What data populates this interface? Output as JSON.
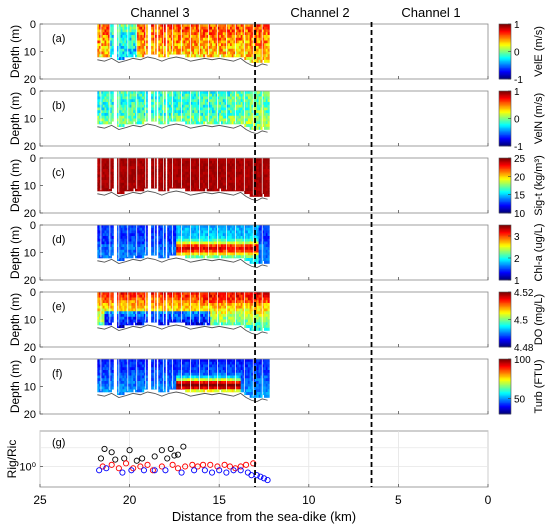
{
  "chart_data": [
    {
      "type": "heatmap",
      "panel_label": "(a)",
      "ylabel": "Depth (m)",
      "colorbar_label": "VelE (m/s)",
      "clim": [
        -1,
        1
      ],
      "colorbar_ticks": [
        "-1",
        "0",
        "1"
      ],
      "colormap": "jet",
      "approx_pattern": "mostly 0.2-1 (orange-red), yellow/green near 20-21 km"
    },
    {
      "type": "heatmap",
      "panel_label": "(b)",
      "ylabel": "Depth (m)",
      "colorbar_label": "VelN (m/s)",
      "clim": [
        -1,
        1
      ],
      "colorbar_ticks": [
        "-1",
        "0",
        "1"
      ],
      "colormap": "jet",
      "approx_pattern": "mostly -0.3 to 0.2 (cyan-green)"
    },
    {
      "type": "heatmap",
      "panel_label": "(c)",
      "ylabel": "Depth (m)",
      "colorbar_label": "Sig-t (kg/m³)",
      "clim": [
        10,
        25
      ],
      "colorbar_ticks": [
        "10",
        "15",
        "20",
        "25"
      ],
      "colormap": "jet",
      "approx_pattern": "uniformly ~25 (dark red)"
    },
    {
      "type": "heatmap",
      "panel_label": "(d)",
      "ylabel": "Depth (m)",
      "colorbar_label": "Chl-a (ug/L)",
      "clim": [
        1,
        3.5
      ],
      "colorbar_ticks": [
        "1",
        "2",
        "3"
      ],
      "colormap": "jet",
      "approx_pattern": "low (~1.3) near 21 km, higher (~3) at 7-10 m depth between 13 and 17 km"
    },
    {
      "type": "heatmap",
      "panel_label": "(e)",
      "ylabel": "Depth (m)",
      "colorbar_label": "DO (mg/L)",
      "clim": [
        4.48,
        4.52
      ],
      "colorbar_ticks": [
        "4.48",
        "4.5",
        "4.52"
      ],
      "colormap": "jet",
      "approx_pattern": "high near surface, low (blue) near bottom 16-21 km"
    },
    {
      "type": "heatmap",
      "panel_label": "(f)",
      "ylabel": "Depth (m)",
      "colorbar_label": "Turb (FTU)",
      "clim": [
        30,
        100
      ],
      "colorbar_ticks": [
        "50",
        "100"
      ],
      "colormap": "jet",
      "approx_pattern": "low (blue) overall, high (red) near 8-10 m depth between 14 and 17 km"
    },
    {
      "type": "scatter",
      "panel_label": "(g)",
      "ylabel": "Rig/Ric",
      "xlabel": "Distance from the sea-dike (km)",
      "yscale": "log",
      "y_tick_label": "10⁰",
      "series": [
        {
          "color": "#000000",
          "points": [
            [
              21.6,
              1.6
            ],
            [
              21.4,
              2.8
            ],
            [
              21.0,
              2.3
            ],
            [
              20.8,
              1.5
            ],
            [
              20.3,
              1.6
            ],
            [
              20.0,
              2.6
            ],
            [
              19.6,
              1.4
            ],
            [
              19.3,
              1.6
            ],
            [
              18.6,
              1.8
            ],
            [
              18.2,
              2.6
            ],
            [
              17.9,
              1.6
            ],
            [
              17.7,
              2.8
            ],
            [
              17.5,
              1.9
            ],
            [
              17.3,
              2.0
            ],
            [
              17.0,
              3.2
            ]
          ]
        },
        {
          "color": "#ff0000",
          "points": [
            [
              21.5,
              1.0
            ],
            [
              21.0,
              1.1
            ],
            [
              20.6,
              0.9
            ],
            [
              20.2,
              1.2
            ],
            [
              19.8,
              0.9
            ],
            [
              19.4,
              1.0
            ],
            [
              19.0,
              1.1
            ],
            [
              18.7,
              0.8
            ],
            [
              18.2,
              1.0
            ],
            [
              17.6,
              1.1
            ],
            [
              17.3,
              0.9
            ],
            [
              16.9,
              1.0
            ],
            [
              16.5,
              1.1
            ],
            [
              16.2,
              1.0
            ],
            [
              15.9,
              1.1
            ],
            [
              15.5,
              1.1
            ],
            [
              15.1,
              1.0
            ],
            [
              14.7,
              1.1
            ],
            [
              14.4,
              1.0
            ],
            [
              14.1,
              0.9
            ],
            [
              13.8,
              1.0
            ],
            [
              13.5,
              1.1
            ],
            [
              13.1,
              1.2
            ]
          ]
        },
        {
          "color": "#0000ff",
          "points": [
            [
              21.7,
              0.8
            ],
            [
              21.3,
              0.9
            ],
            [
              20.4,
              0.7
            ],
            [
              19.9,
              0.8
            ],
            [
              19.2,
              0.8
            ],
            [
              18.6,
              0.8
            ],
            [
              18.0,
              0.8
            ],
            [
              17.1,
              0.7
            ],
            [
              16.4,
              0.8
            ],
            [
              15.8,
              0.8
            ],
            [
              15.4,
              0.7
            ],
            [
              15.0,
              0.8
            ],
            [
              14.6,
              0.7
            ],
            [
              14.2,
              0.8
            ],
            [
              13.8,
              0.8
            ],
            [
              13.4,
              0.7
            ],
            [
              13.2,
              0.6
            ],
            [
              12.9,
              0.6
            ],
            [
              12.7,
              0.55
            ],
            [
              12.5,
              0.5
            ],
            [
              12.3,
              0.45
            ]
          ]
        }
      ]
    }
  ],
  "figure": {
    "channel_labels": [
      {
        "label": "Channel 3",
        "center_km": 19.3
      },
      {
        "label": "Channel 2",
        "center_km": 9.8
      },
      {
        "label": "Channel 1",
        "center_km": 3.3
      }
    ],
    "channel_boundaries_km": [
      13.0,
      6.5
    ],
    "x_axis": {
      "label": "Distance from the sea-dike (km)",
      "range": [
        25,
        0
      ],
      "ticks": [
        "25",
        "20",
        "15",
        "10",
        "5",
        "0"
      ],
      "tick_values": [
        25,
        20,
        15,
        10,
        5,
        0
      ]
    },
    "depth_axis": {
      "range": [
        0,
        20
      ],
      "ticks": [
        "0",
        "10",
        "20"
      ]
    },
    "data_extent_km": [
      21.8,
      12.2
    ],
    "bottom_depth_profile_m": [
      [
        21.8,
        11.5
      ],
      [
        21.4,
        12.0
      ],
      [
        21.0,
        11.0
      ],
      [
        20.6,
        12.5
      ],
      [
        20.2,
        11.8
      ],
      [
        19.8,
        11.0
      ],
      [
        19.4,
        11.5
      ],
      [
        19.0,
        10.5
      ],
      [
        18.6,
        11.0
      ],
      [
        18.2,
        12.0
      ],
      [
        17.8,
        11.0
      ],
      [
        17.4,
        10.5
      ],
      [
        17.0,
        11.0
      ],
      [
        16.6,
        12.0
      ],
      [
        16.2,
        11.5
      ],
      [
        15.8,
        11.0
      ],
      [
        15.4,
        11.5
      ],
      [
        15.0,
        11.0
      ],
      [
        14.6,
        11.5
      ],
      [
        14.2,
        12.0
      ],
      [
        13.8,
        11.0
      ],
      [
        13.5,
        12.5
      ],
      [
        13.2,
        13.5
      ],
      [
        12.9,
        14.0
      ],
      [
        12.6,
        13.0
      ],
      [
        12.3,
        13.5
      ]
    ]
  }
}
